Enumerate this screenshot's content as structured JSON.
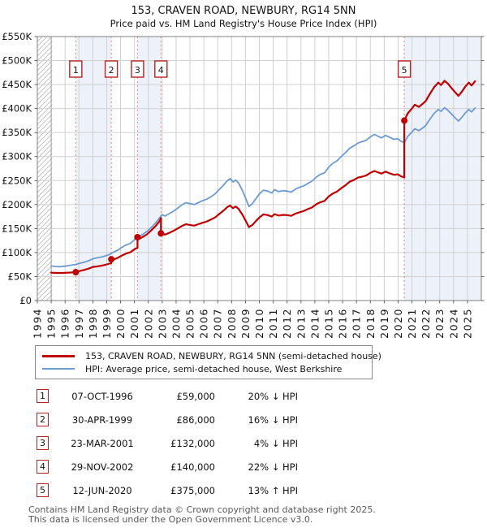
{
  "header": {
    "title": "153, CRAVEN ROAD, NEWBURY, RG14 5NN",
    "subtitle": "Price paid vs. HM Land Registry's House Price Index (HPI)"
  },
  "footer": {
    "line1": "Contains HM Land Registry data © Crown copyright and database right 2025.",
    "line2": "This data is licensed under the Open Government Licence v3.0."
  },
  "chart_data": {
    "type": "line",
    "title": "153, CRAVEN ROAD, NEWBURY, RG14 5NN",
    "subtitle": "Price paid vs. HM Land Registry's House Price Index (HPI)",
    "x_domain": [
      1994,
      2026
    ],
    "x_ticks": [
      1994,
      1995,
      1996,
      1997,
      1998,
      1999,
      2000,
      2001,
      2002,
      2003,
      2004,
      2005,
      2006,
      2007,
      2008,
      2009,
      2010,
      2011,
      2012,
      2013,
      2014,
      2015,
      2016,
      2017,
      2018,
      2019,
      2020,
      2021,
      2022,
      2023,
      2024,
      2025
    ],
    "y_domain_k": [
      0,
      550
    ],
    "y_tick_step_k": 50,
    "y_unit": "£K (values stored in thousands of pounds)",
    "grid": true,
    "legend_position": "below-chart-boxed",
    "colors": {
      "property_line": "#c00000",
      "hpi_line": "#6c9bd2",
      "sale_dash_line": "#f0898a",
      "ownership_band": "#edf1fa",
      "gridline": "#d0d0d0",
      "data_start_line": "#999999",
      "frame": "#808080",
      "hatch": "#aaaaaa",
      "badge_border": "#b92222"
    },
    "hatch_region": [
      1994,
      1995.08
    ],
    "bands": [
      [
        1996.77,
        1999.33
      ],
      [
        2001.22,
        2002.91
      ],
      [
        2020.45,
        2026
      ]
    ],
    "sales": [
      {
        "num": "1",
        "date": "07-OCT-1996",
        "year": 1996.77,
        "price": 59000,
        "price_label": "£59,000",
        "vs_hpi": "20% ↓ HPI"
      },
      {
        "num": "2",
        "date": "30-APR-1999",
        "year": 1999.33,
        "price": 86000,
        "price_label": "£86,000",
        "vs_hpi": "16% ↓ HPI"
      },
      {
        "num": "3",
        "date": "23-MAR-2001",
        "year": 2001.22,
        "price": 132000,
        "price_label": "£132,000",
        "vs_hpi": "4% ↓ HPI"
      },
      {
        "num": "4",
        "date": "29-NOV-2002",
        "year": 2002.91,
        "price": 140000,
        "price_label": "£140,000",
        "vs_hpi": "22% ↓ HPI"
      },
      {
        "num": "5",
        "date": "12-JUN-2020",
        "year": 2020.45,
        "price": 375000,
        "price_label": "£375,000",
        "vs_hpi": "13% ↑ HPI"
      }
    ],
    "series": [
      {
        "name": "153, CRAVEN ROAD, NEWBURY, RG14 5NN (semi-detached house)",
        "color": "#c00000",
        "width": 2.2,
        "points": [
          [
            1995.0,
            58
          ],
          [
            1995.4,
            57.5
          ],
          [
            1995.8,
            57.5
          ],
          [
            1996.2,
            58
          ],
          [
            1996.5,
            58.5
          ],
          [
            1996.77,
            59
          ],
          [
            1997.1,
            62
          ],
          [
            1997.4,
            64
          ],
          [
            1997.7,
            66.5
          ],
          [
            1998.0,
            70
          ],
          [
            1998.3,
            71
          ],
          [
            1998.6,
            72.5
          ],
          [
            1998.9,
            74.5
          ],
          [
            1999.2,
            77
          ],
          [
            1999.33,
            78
          ],
          [
            1999.33,
            86
          ],
          [
            1999.5,
            85.5
          ],
          [
            1999.8,
            89
          ],
          [
            2000.1,
            94
          ],
          [
            2000.4,
            98
          ],
          [
            2000.7,
            100.5
          ],
          [
            2001.0,
            107
          ],
          [
            2001.22,
            110
          ],
          [
            2001.22,
            132
          ],
          [
            2001.3,
            128
          ],
          [
            2001.6,
            132.5
          ],
          [
            2001.9,
            138
          ],
          [
            2002.2,
            146
          ],
          [
            2002.5,
            154.5
          ],
          [
            2002.8,
            165
          ],
          [
            2002.91,
            172
          ],
          [
            2002.91,
            140
          ],
          [
            2003.0,
            139.5
          ],
          [
            2003.2,
            137.5
          ],
          [
            2003.5,
            141
          ],
          [
            2003.8,
            145
          ],
          [
            2004.1,
            150
          ],
          [
            2004.4,
            155
          ],
          [
            2004.7,
            159
          ],
          [
            2005.0,
            157.5
          ],
          [
            2005.3,
            156
          ],
          [
            2005.6,
            159
          ],
          [
            2005.9,
            162
          ],
          [
            2006.2,
            164.5
          ],
          [
            2006.5,
            168.5
          ],
          [
            2006.8,
            173
          ],
          [
            2007.1,
            180
          ],
          [
            2007.4,
            187
          ],
          [
            2007.7,
            195
          ],
          [
            2007.9,
            198
          ],
          [
            2008.1,
            192.5
          ],
          [
            2008.3,
            196
          ],
          [
            2008.5,
            191
          ],
          [
            2008.8,
            178
          ],
          [
            2009.0,
            167
          ],
          [
            2009.25,
            153
          ],
          [
            2009.5,
            157.5
          ],
          [
            2009.75,
            165.5
          ],
          [
            2010.0,
            173
          ],
          [
            2010.3,
            179.5
          ],
          [
            2010.6,
            178
          ],
          [
            2010.9,
            175
          ],
          [
            2011.1,
            180
          ],
          [
            2011.4,
            177
          ],
          [
            2011.7,
            178.5
          ],
          [
            2012.0,
            178
          ],
          [
            2012.3,
            176.5
          ],
          [
            2012.6,
            181
          ],
          [
            2012.9,
            184
          ],
          [
            2013.2,
            186.5
          ],
          [
            2013.5,
            190.5
          ],
          [
            2013.8,
            194
          ],
          [
            2014.1,
            200.5
          ],
          [
            2014.4,
            205
          ],
          [
            2014.7,
            207.5
          ],
          [
            2015.0,
            217
          ],
          [
            2015.3,
            223
          ],
          [
            2015.6,
            227
          ],
          [
            2015.9,
            234
          ],
          [
            2016.2,
            240
          ],
          [
            2016.5,
            247.5
          ],
          [
            2016.8,
            251
          ],
          [
            2017.1,
            256
          ],
          [
            2017.4,
            258
          ],
          [
            2017.7,
            260.5
          ],
          [
            2018.0,
            266
          ],
          [
            2018.3,
            270
          ],
          [
            2018.5,
            267.5
          ],
          [
            2018.8,
            264.5
          ],
          [
            2019.1,
            268.5
          ],
          [
            2019.4,
            265
          ],
          [
            2019.7,
            262
          ],
          [
            2020.0,
            263
          ],
          [
            2020.2,
            259
          ],
          [
            2020.45,
            256.5
          ],
          [
            2020.45,
            375
          ],
          [
            2020.7,
            390
          ],
          [
            2021.0,
            400
          ],
          [
            2021.2,
            408
          ],
          [
            2021.5,
            403.5
          ],
          [
            2021.8,
            410.5
          ],
          [
            2022.0,
            416
          ],
          [
            2022.3,
            431
          ],
          [
            2022.6,
            444.5
          ],
          [
            2022.9,
            454
          ],
          [
            2023.1,
            449
          ],
          [
            2023.35,
            458
          ],
          [
            2023.6,
            451.5
          ],
          [
            2023.9,
            441
          ],
          [
            2024.1,
            434.5
          ],
          [
            2024.35,
            426.5
          ],
          [
            2024.6,
            435.5
          ],
          [
            2024.85,
            446
          ],
          [
            2025.1,
            454
          ],
          [
            2025.3,
            448
          ],
          [
            2025.55,
            457
          ]
        ]
      },
      {
        "name": "HPI: Average price, semi-detached house, West Berkshire",
        "color": "#6c9bd2",
        "width": 1.8,
        "points": [
          [
            1995.0,
            72
          ],
          [
            1995.3,
            71
          ],
          [
            1995.6,
            70.5
          ],
          [
            1995.9,
            71.5
          ],
          [
            1996.2,
            72.5
          ],
          [
            1996.5,
            74
          ],
          [
            1996.8,
            75.5
          ],
          [
            1997.1,
            78
          ],
          [
            1997.4,
            80
          ],
          [
            1997.7,
            83
          ],
          [
            1998.0,
            87
          ],
          [
            1998.3,
            89
          ],
          [
            1998.6,
            90.5
          ],
          [
            1998.9,
            93
          ],
          [
            1999.2,
            96
          ],
          [
            1999.5,
            101
          ],
          [
            1999.8,
            105
          ],
          [
            2000.1,
            111
          ],
          [
            2000.4,
            116
          ],
          [
            2000.7,
            119
          ],
          [
            2001.0,
            127
          ],
          [
            2001.3,
            133
          ],
          [
            2001.6,
            138
          ],
          [
            2001.9,
            144
          ],
          [
            2002.2,
            152
          ],
          [
            2002.5,
            161
          ],
          [
            2002.8,
            172
          ],
          [
            2003.0,
            179
          ],
          [
            2003.2,
            176
          ],
          [
            2003.5,
            181
          ],
          [
            2003.8,
            186
          ],
          [
            2004.1,
            192
          ],
          [
            2004.4,
            199
          ],
          [
            2004.7,
            204
          ],
          [
            2005.0,
            202
          ],
          [
            2005.3,
            200
          ],
          [
            2005.6,
            204
          ],
          [
            2005.9,
            208
          ],
          [
            2006.2,
            211
          ],
          [
            2006.5,
            216
          ],
          [
            2006.8,
            222
          ],
          [
            2007.1,
            231
          ],
          [
            2007.4,
            240
          ],
          [
            2007.7,
            250
          ],
          [
            2007.9,
            254
          ],
          [
            2008.1,
            247
          ],
          [
            2008.3,
            251
          ],
          [
            2008.5,
            245
          ],
          [
            2008.8,
            228
          ],
          [
            2009.0,
            214
          ],
          [
            2009.25,
            196
          ],
          [
            2009.5,
            202
          ],
          [
            2009.75,
            212
          ],
          [
            2010.0,
            222
          ],
          [
            2010.3,
            230
          ],
          [
            2010.6,
            228
          ],
          [
            2010.9,
            224
          ],
          [
            2011.1,
            231
          ],
          [
            2011.4,
            227
          ],
          [
            2011.7,
            229
          ],
          [
            2012.0,
            228
          ],
          [
            2012.3,
            226
          ],
          [
            2012.6,
            232
          ],
          [
            2012.9,
            236
          ],
          [
            2013.2,
            239
          ],
          [
            2013.5,
            244
          ],
          [
            2013.8,
            249
          ],
          [
            2014.1,
            257
          ],
          [
            2014.4,
            263
          ],
          [
            2014.7,
            266
          ],
          [
            2015.0,
            278
          ],
          [
            2015.3,
            286
          ],
          [
            2015.6,
            291
          ],
          [
            2015.9,
            300
          ],
          [
            2016.2,
            308
          ],
          [
            2016.5,
            317
          ],
          [
            2016.8,
            322
          ],
          [
            2017.1,
            328
          ],
          [
            2017.4,
            331
          ],
          [
            2017.7,
            334
          ],
          [
            2018.0,
            341
          ],
          [
            2018.3,
            346
          ],
          [
            2018.5,
            343
          ],
          [
            2018.8,
            339
          ],
          [
            2019.1,
            344
          ],
          [
            2019.4,
            340
          ],
          [
            2019.7,
            336
          ],
          [
            2020.0,
            337
          ],
          [
            2020.2,
            332
          ],
          [
            2020.45,
            329
          ],
          [
            2020.7,
            342
          ],
          [
            2021.0,
            351
          ],
          [
            2021.2,
            358
          ],
          [
            2021.5,
            354
          ],
          [
            2021.8,
            360
          ],
          [
            2022.0,
            365
          ],
          [
            2022.3,
            378
          ],
          [
            2022.6,
            390
          ],
          [
            2022.9,
            398
          ],
          [
            2023.1,
            394
          ],
          [
            2023.35,
            402
          ],
          [
            2023.6,
            396
          ],
          [
            2023.9,
            387
          ],
          [
            2024.1,
            381
          ],
          [
            2024.35,
            374
          ],
          [
            2024.6,
            382
          ],
          [
            2024.85,
            391
          ],
          [
            2025.1,
            398
          ],
          [
            2025.3,
            393
          ],
          [
            2025.55,
            401
          ]
        ]
      }
    ]
  }
}
